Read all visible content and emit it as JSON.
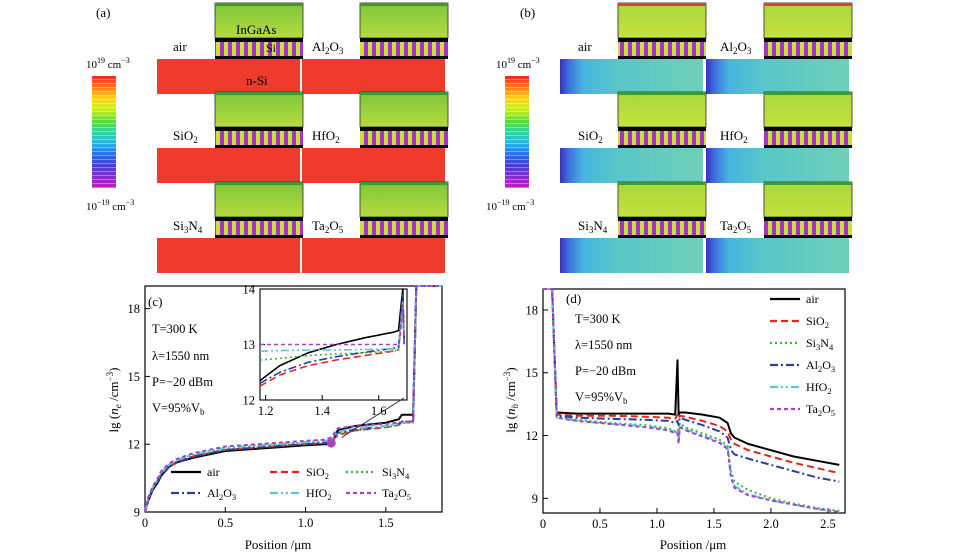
{
  "panels": {
    "a": {
      "label": "(a)",
      "scale_top": "10",
      "scale_top_exp": "19",
      "scale_top_unit": " cm",
      "scale_top_unit_exp": "−3",
      "scale_bottom": "10",
      "scale_bottom_exp": "−19",
      "scale_bottom_unit": " cm",
      "scale_bottom_unit_exp": "−3",
      "layer_labels": {
        "top": "InGaAs",
        "middle": "Si",
        "bottom": "n-Si"
      },
      "dielectrics": [
        {
          "name": "air",
          "main": "air",
          "sub": ""
        },
        {
          "name": "Al2O3",
          "main": "Al",
          "sub": "2",
          "main2": "O",
          "sub2": "3"
        },
        {
          "name": "SiO2",
          "main": "SiO",
          "sub": "2"
        },
        {
          "name": "HfO2",
          "main": "HfO",
          "sub": "2"
        },
        {
          "name": "Si3N4",
          "main": "Si",
          "sub": "3",
          "main2": "N",
          "sub2": "4"
        },
        {
          "name": "Ta2O5",
          "main": "Ta",
          "sub": "2",
          "main2": "O",
          "sub2": "5"
        }
      ]
    },
    "b": {
      "label": "(b)"
    },
    "c": {
      "label": "(c)",
      "annotations": [
        "T=300 K",
        "λ=1550 nm",
        "P=−20 dBm",
        "V=95%V"
      ],
      "v_sub": "b",
      "legend": [
        "air",
        "SiO2",
        "Si3N4",
        "Al2O3",
        "HfO2",
        "Ta2O5"
      ]
    },
    "d": {
      "label": "(d)",
      "annotations": [
        "T=300 K",
        "λ=1550 nm",
        "P=−20 dBm",
        "V=95%V"
      ],
      "v_sub": "b",
      "legend": [
        "air",
        "SiO2",
        "Si3N4",
        "Al2O3",
        "HfO2",
        "Ta2O5"
      ]
    }
  },
  "colors": {
    "air": "#000000",
    "SiO2": "#e8231c",
    "Si3N4": "#3cb43c",
    "Al2O3": "#2b3f9e",
    "HfO2": "#59c5dd",
    "Ta2O5": "#a446c2",
    "nsi_red": "#ee3b2c",
    "top_green": "#9dd33a",
    "cmap": [
      "#ff2020",
      "#ff7a1a",
      "#ffd21a",
      "#c8f020",
      "#5fd83a",
      "#2fd6a0",
      "#26b7e6",
      "#2b6de8",
      "#4a3bd8",
      "#8a2ccc",
      "#c01fc0"
    ]
  },
  "chart_data": [
    {
      "name": "panel-c",
      "type": "line",
      "xlabel": "Position /μm",
      "ylabel": "lg (n_e /cm^-3)",
      "xlim": [
        0,
        1.85
      ],
      "ylim": [
        9,
        19
      ],
      "xticks": [
        "0",
        "0.5",
        "1.0",
        "1.5"
      ],
      "xtick_values": [
        0,
        0.5,
        1.0,
        1.5
      ],
      "yticks": [
        "9",
        "12",
        "15",
        "18"
      ],
      "ytick_values": [
        9,
        12,
        15,
        18
      ],
      "series": [
        {
          "name": "air",
          "color_key": "air",
          "dash": "",
          "x": [
            0,
            0.02,
            0.05,
            0.08,
            0.1,
            0.15,
            0.2,
            0.3,
            0.5,
            0.8,
            1.0,
            1.12,
            1.16,
            1.2,
            1.3,
            1.5,
            1.58,
            1.6,
            1.62,
            1.67,
            1.69,
            1.72,
            1.85
          ],
          "y": [
            9,
            9.5,
            10.0,
            10.3,
            10.6,
            11.0,
            11.2,
            11.4,
            11.7,
            11.85,
            11.95,
            12.0,
            12.0,
            12.6,
            12.8,
            12.95,
            13.1,
            13.3,
            13.3,
            13.3,
            19.0,
            19.1,
            19.1
          ]
        },
        {
          "name": "SiO2",
          "color_key": "SiO2",
          "dash": "7 4",
          "x": [
            0,
            0.02,
            0.05,
            0.08,
            0.1,
            0.15,
            0.2,
            0.3,
            0.5,
            0.8,
            1.0,
            1.12,
            1.16,
            1.2,
            1.3,
            1.5,
            1.58,
            1.6,
            1.62,
            1.67,
            1.69,
            1.72,
            1.85
          ],
          "y": [
            9,
            9.6,
            10.1,
            10.4,
            10.7,
            11.0,
            11.2,
            11.45,
            11.75,
            11.9,
            12.0,
            12.05,
            12.1,
            12.4,
            12.6,
            12.75,
            12.85,
            13.0,
            13.0,
            13.0,
            19.0,
            19.1,
            19.1
          ]
        },
        {
          "name": "Si3N4",
          "color_key": "Si3N4",
          "dash": "2 3",
          "x": [
            0,
            0.02,
            0.05,
            0.08,
            0.1,
            0.15,
            0.2,
            0.3,
            0.5,
            0.8,
            1.0,
            1.12,
            1.16,
            1.2,
            1.3,
            1.5,
            1.58,
            1.6,
            1.62,
            1.67,
            1.69,
            1.72,
            1.85
          ],
          "y": [
            9,
            9.6,
            10.1,
            10.4,
            10.7,
            11.05,
            11.25,
            11.5,
            11.8,
            11.95,
            12.05,
            12.1,
            12.15,
            12.45,
            12.6,
            12.75,
            12.85,
            12.95,
            12.95,
            12.95,
            19.0,
            19.1,
            19.1
          ]
        },
        {
          "name": "Al2O3",
          "color_key": "Al2O3",
          "dash": "8 3 2 3",
          "x": [
            0,
            0.02,
            0.05,
            0.08,
            0.1,
            0.15,
            0.2,
            0.3,
            0.5,
            0.8,
            1.0,
            1.12,
            1.16,
            1.2,
            1.3,
            1.5,
            1.58,
            1.6,
            1.62,
            1.67,
            1.69,
            1.72,
            1.85
          ],
          "y": [
            9,
            9.55,
            10.05,
            10.35,
            10.65,
            11.0,
            11.2,
            11.45,
            11.75,
            11.9,
            12.0,
            12.05,
            12.1,
            12.5,
            12.65,
            12.8,
            12.9,
            13.0,
            13.0,
            13.0,
            19.0,
            19.1,
            19.1
          ]
        },
        {
          "name": "HfO2",
          "color_key": "HfO2",
          "dash": "8 3 2 3 2 3",
          "x": [
            0,
            0.02,
            0.05,
            0.08,
            0.1,
            0.15,
            0.2,
            0.3,
            0.5,
            0.8,
            1.0,
            1.12,
            1.16,
            1.2,
            1.3,
            1.5,
            1.58,
            1.6,
            1.62,
            1.67,
            1.69,
            1.72,
            1.85
          ],
          "y": [
            9,
            9.6,
            10.1,
            10.45,
            10.75,
            11.1,
            11.3,
            11.55,
            11.85,
            12.0,
            12.1,
            12.15,
            12.2,
            12.55,
            12.7,
            12.8,
            12.88,
            12.95,
            12.95,
            12.95,
            19.0,
            19.1,
            19.1
          ]
        },
        {
          "name": "Ta2O5",
          "color_key": "Ta2O5",
          "dash": "4 3",
          "x": [
            0,
            0.02,
            0.05,
            0.08,
            0.1,
            0.15,
            0.2,
            0.3,
            0.5,
            0.8,
            1.0,
            1.12,
            1.16,
            1.2,
            1.3,
            1.5,
            1.58,
            1.6,
            1.62,
            1.67,
            1.69,
            1.72,
            1.85
          ],
          "y": [
            9,
            9.65,
            10.15,
            10.5,
            10.8,
            11.15,
            11.35,
            11.6,
            11.9,
            12.05,
            12.15,
            12.2,
            12.3,
            12.7,
            12.8,
            12.9,
            12.95,
            13.0,
            13.0,
            13.0,
            19.0,
            19.1,
            19.1
          ]
        }
      ],
      "inset": {
        "xlim": [
          1.18,
          1.7
        ],
        "ylim": [
          12,
          14
        ],
        "xticks": [
          "1.2",
          "1.4",
          "1.6"
        ],
        "xtick_values": [
          1.2,
          1.4,
          1.6
        ],
        "yticks": [
          "12",
          "13",
          "14"
        ],
        "ytick_values": [
          12,
          13,
          14
        ],
        "series": [
          {
            "name": "air",
            "x": [
              1.18,
              1.25,
              1.35,
              1.45,
              1.55,
              1.65,
              1.67,
              1.675,
              1.685,
              1.69
            ],
            "y": [
              12.35,
              12.62,
              12.85,
              13.0,
              13.12,
              13.22,
              13.25,
              13.5,
              14.0,
              13.0
            ]
          },
          {
            "name": "SiO2",
            "x": [
              1.18,
              1.25,
              1.35,
              1.45,
              1.55,
              1.65,
              1.67,
              1.675,
              1.685,
              1.69
            ],
            "y": [
              12.25,
              12.45,
              12.62,
              12.72,
              12.8,
              12.88,
              12.9,
              13.2,
              13.8,
              13.0
            ]
          },
          {
            "name": "Si3N4",
            "x": [
              1.18,
              1.25,
              1.35,
              1.45,
              1.55,
              1.65,
              1.67,
              1.675,
              1.685,
              1.69
            ],
            "y": [
              12.72,
              12.75,
              12.8,
              12.83,
              12.85,
              12.88,
              12.9,
              13.1,
              13.7,
              13.0
            ]
          },
          {
            "name": "Al2O3",
            "x": [
              1.18,
              1.25,
              1.35,
              1.45,
              1.55,
              1.65,
              1.67,
              1.675,
              1.685,
              1.69
            ],
            "y": [
              12.3,
              12.5,
              12.68,
              12.78,
              12.86,
              12.93,
              12.95,
              13.3,
              13.9,
              13.0
            ]
          },
          {
            "name": "HfO2",
            "x": [
              1.18,
              1.25,
              1.35,
              1.45,
              1.55,
              1.65,
              1.67,
              1.675,
              1.685,
              1.69
            ],
            "y": [
              12.88,
              12.89,
              12.9,
              12.9,
              12.91,
              12.92,
              12.92,
              13.2,
              13.8,
              13.0
            ]
          },
          {
            "name": "Ta2O5",
            "x": [
              1.18,
              1.25,
              1.35,
              1.45,
              1.55,
              1.65,
              1.67,
              1.675,
              1.685,
              1.69
            ],
            "y": [
              13.0,
              13.0,
              13.0,
              13.0,
              13.0,
              13.0,
              13.0,
              13.1,
              13.7,
              13.0
            ]
          }
        ]
      }
    },
    {
      "name": "panel-d",
      "type": "line",
      "xlabel": "Position /μm",
      "ylabel": "lg (n_h /cm^-3)",
      "xlim": [
        0,
        2.65
      ],
      "ylim": [
        8.3,
        19
      ],
      "xticks": [
        "0",
        "0.5",
        "1.0",
        "1.5",
        "2.0",
        "2.5"
      ],
      "xtick_values": [
        0,
        0.5,
        1.0,
        1.5,
        2.0,
        2.5
      ],
      "yticks": [
        "9",
        "12",
        "15",
        "18"
      ],
      "ytick_values": [
        9,
        12,
        15,
        18
      ],
      "series": [
        {
          "name": "air",
          "color_key": "air",
          "dash": "",
          "x": [
            0,
            0.08,
            0.1,
            0.12,
            0.3,
            0.6,
            0.9,
            1.1,
            1.16,
            1.18,
            1.19,
            1.2,
            1.25,
            1.4,
            1.55,
            1.62,
            1.65,
            1.68,
            1.8,
            2.0,
            2.2,
            2.4,
            2.6
          ],
          "y": [
            19,
            19,
            16.0,
            13.1,
            13.05,
            13.05,
            13.05,
            13.05,
            13.0,
            15.6,
            13.0,
            13.1,
            13.1,
            13.0,
            12.85,
            12.6,
            12.1,
            11.9,
            11.6,
            11.3,
            11.0,
            10.8,
            10.6
          ]
        },
        {
          "name": "SiO2",
          "color_key": "SiO2",
          "dash": "7 4",
          "x": [
            0,
            0.08,
            0.1,
            0.12,
            0.3,
            0.6,
            0.9,
            1.1,
            1.16,
            1.18,
            1.19,
            1.2,
            1.25,
            1.4,
            1.55,
            1.62,
            1.65,
            1.68,
            1.8,
            2.0,
            2.2,
            2.4,
            2.6
          ],
          "y": [
            19,
            19,
            16.0,
            13.0,
            12.95,
            12.95,
            12.9,
            12.85,
            12.8,
            13.0,
            12.8,
            12.95,
            12.9,
            12.7,
            12.45,
            12.2,
            11.8,
            11.6,
            11.3,
            11.0,
            10.7,
            10.45,
            10.2
          ]
        },
        {
          "name": "Si3N4",
          "color_key": "Si3N4",
          "dash": "2 3",
          "x": [
            0,
            0.08,
            0.1,
            0.12,
            0.3,
            0.6,
            0.9,
            1.1,
            1.16,
            1.18,
            1.19,
            1.2,
            1.25,
            1.4,
            1.55,
            1.62,
            1.65,
            1.68,
            1.8,
            2.0,
            2.2,
            2.4,
            2.6
          ],
          "y": [
            19,
            19,
            16.0,
            12.9,
            12.75,
            12.6,
            12.5,
            12.35,
            12.2,
            12.3,
            11.8,
            12.6,
            12.4,
            12.1,
            11.8,
            11.5,
            10.3,
            9.8,
            9.4,
            9.0,
            8.75,
            8.55,
            8.4
          ]
        },
        {
          "name": "Al2O3",
          "color_key": "Al2O3",
          "dash": "8 3 2 3",
          "x": [
            0,
            0.08,
            0.1,
            0.12,
            0.3,
            0.6,
            0.9,
            1.1,
            1.16,
            1.18,
            1.19,
            1.2,
            1.25,
            1.4,
            1.55,
            1.62,
            1.65,
            1.68,
            1.8,
            2.0,
            2.2,
            2.4,
            2.6
          ],
          "y": [
            19,
            19,
            16.0,
            12.95,
            12.85,
            12.8,
            12.75,
            12.7,
            12.6,
            12.7,
            12.5,
            12.85,
            12.75,
            12.5,
            12.2,
            11.9,
            11.3,
            11.1,
            10.9,
            10.6,
            10.3,
            10.0,
            9.8
          ]
        },
        {
          "name": "HfO2",
          "color_key": "HfO2",
          "dash": "8 3 2 3 2 3",
          "x": [
            0,
            0.08,
            0.1,
            0.12,
            0.3,
            0.6,
            0.9,
            1.1,
            1.16,
            1.18,
            1.19,
            1.2,
            1.25,
            1.4,
            1.55,
            1.62,
            1.65,
            1.68,
            1.8,
            2.0,
            2.2,
            2.4,
            2.6
          ],
          "y": [
            19,
            19,
            16.0,
            12.85,
            12.7,
            12.55,
            12.45,
            12.3,
            12.15,
            12.2,
            11.7,
            12.5,
            12.3,
            12.0,
            11.7,
            11.4,
            10.1,
            9.6,
            9.2,
            8.9,
            8.7,
            8.5,
            8.35
          ]
        },
        {
          "name": "Ta2O5",
          "color_key": "Ta2O5",
          "dash": "4 3",
          "x": [
            0,
            0.08,
            0.1,
            0.12,
            0.3,
            0.6,
            0.9,
            1.1,
            1.16,
            1.18,
            1.19,
            1.2,
            1.25,
            1.4,
            1.55,
            1.62,
            1.65,
            1.68,
            1.8,
            2.0,
            2.2,
            2.4,
            2.6
          ],
          "y": [
            19,
            19,
            16.0,
            12.85,
            12.7,
            12.55,
            12.4,
            12.25,
            12.1,
            12.1,
            11.6,
            12.4,
            12.25,
            11.95,
            11.65,
            11.35,
            10.0,
            9.5,
            9.15,
            8.9,
            8.7,
            8.5,
            8.35
          ]
        }
      ]
    }
  ]
}
